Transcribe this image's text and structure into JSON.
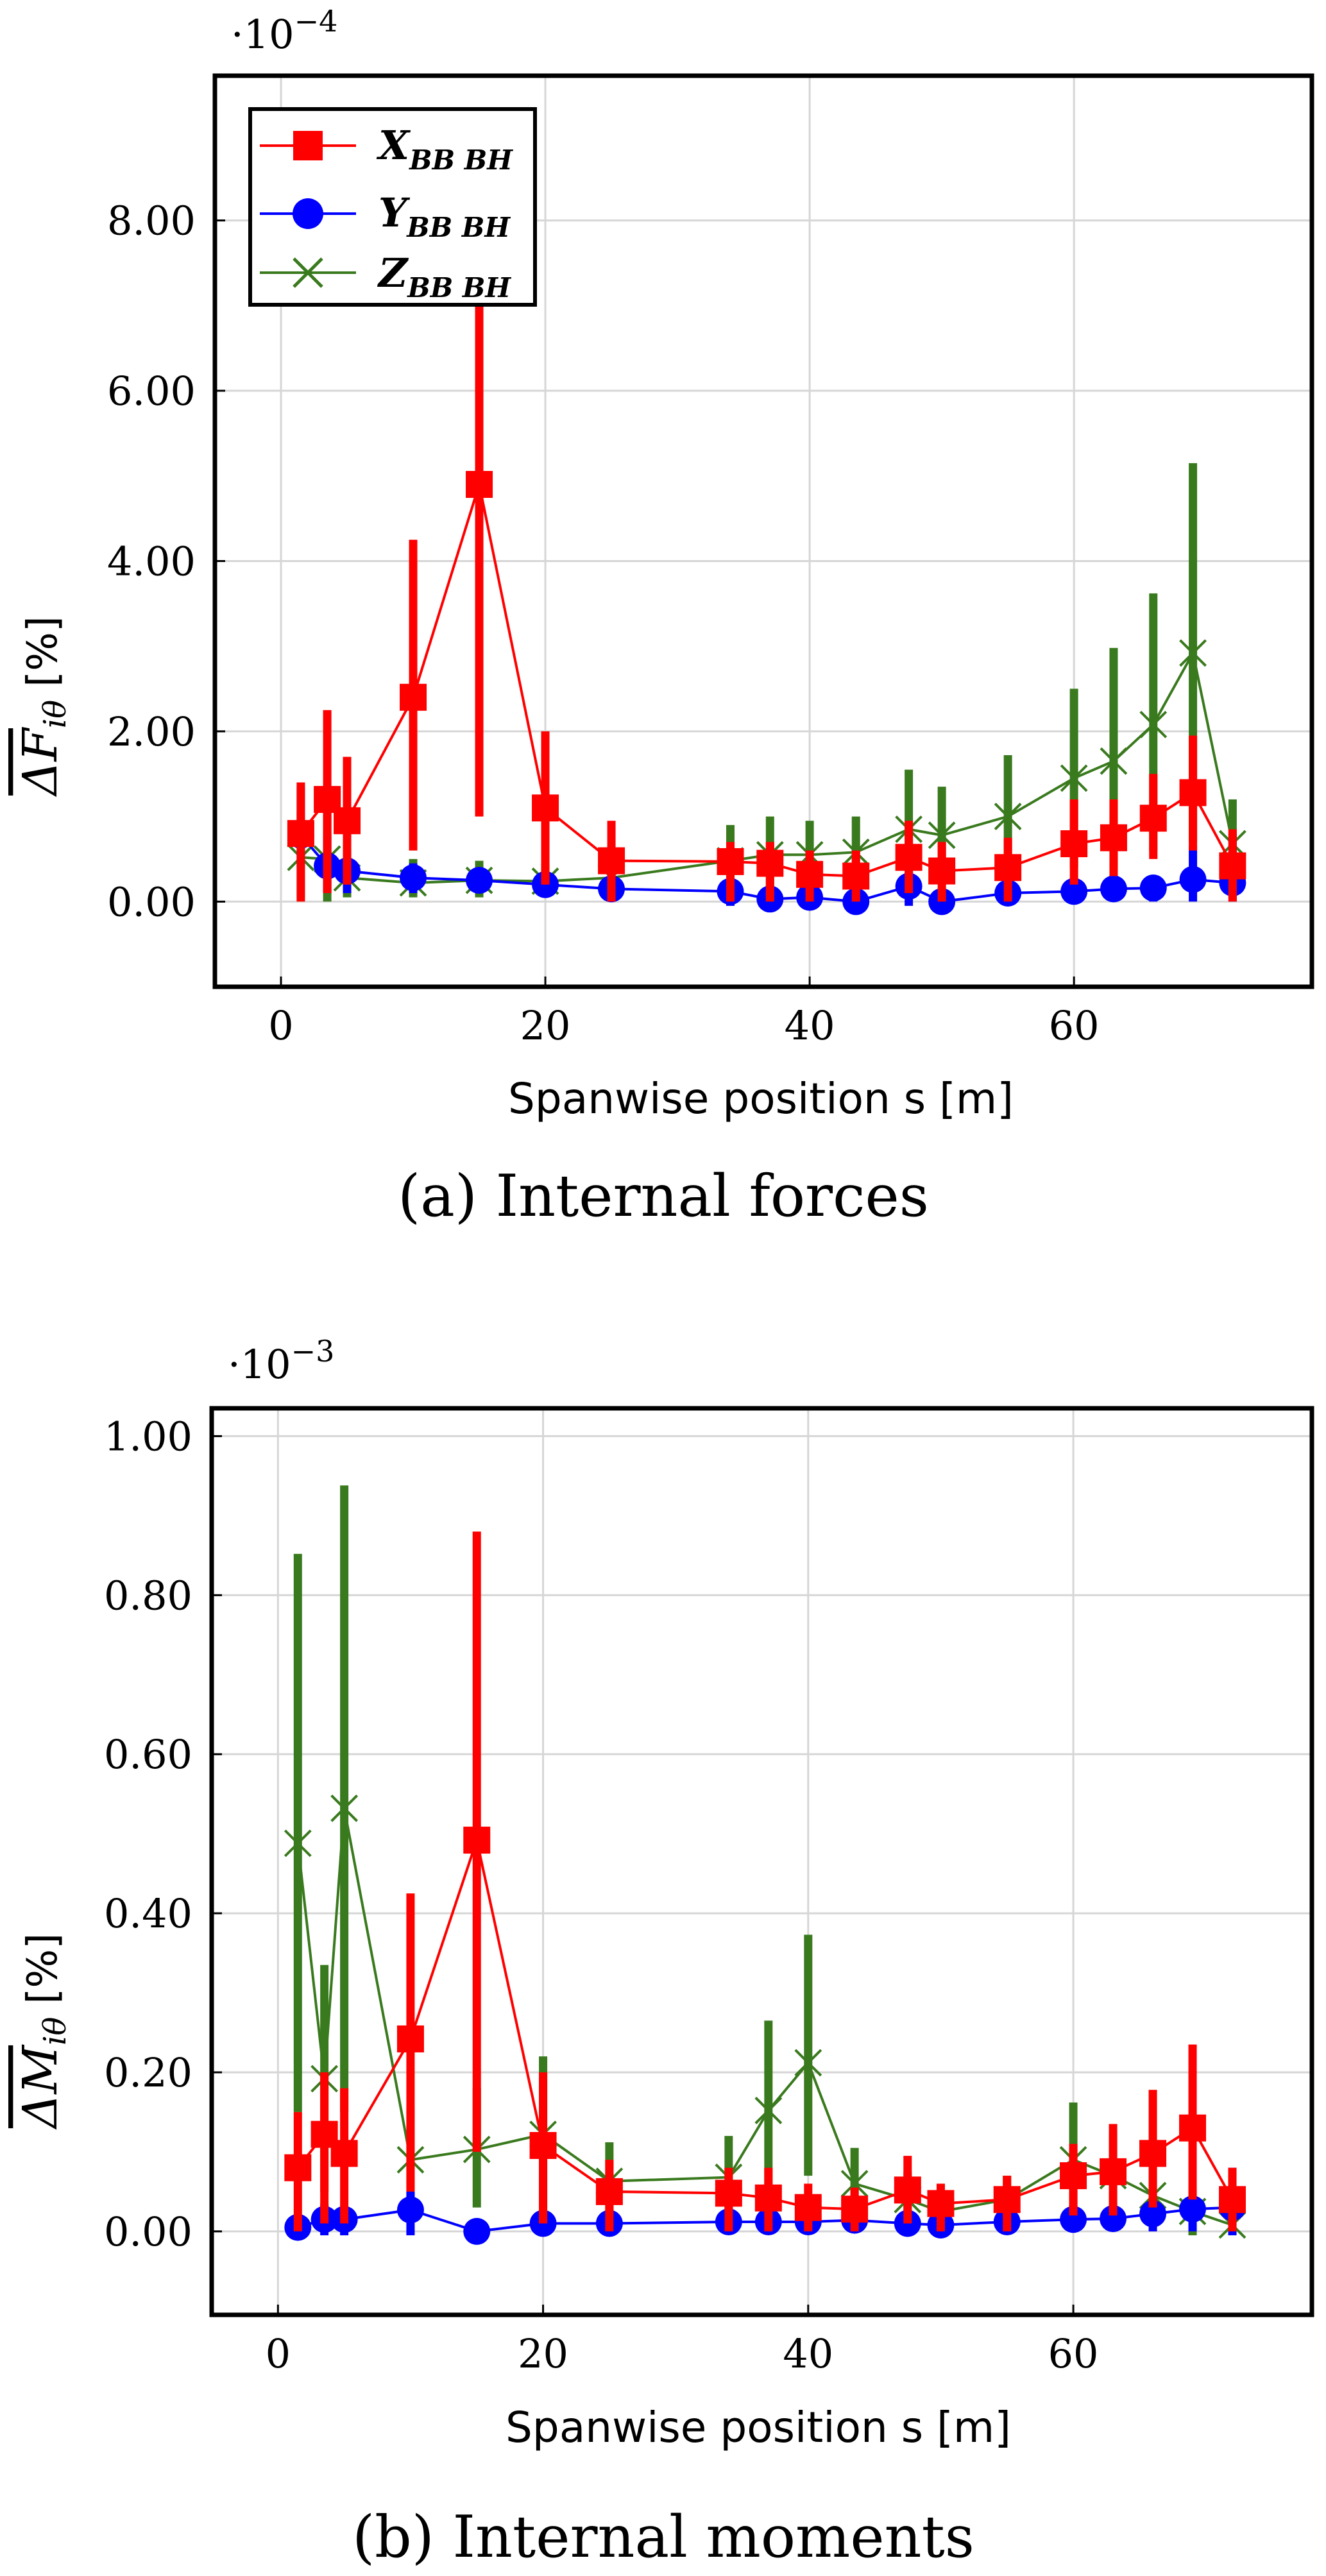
{
  "chart_data": [
    {
      "type": "line",
      "caption": "(a) Internal forces",
      "xlabel": "Spanwise position s [m]",
      "ylabel": "ΔF̄iθ [%]",
      "ylabel_main": "ΔF",
      "ylabel_sub": "iθ",
      "ylabel_unit": "[%]",
      "scale_label": "·10",
      "scale_exp": "−4",
      "xlim": [
        -5,
        78
      ],
      "ylim": [
        -1,
        9.7
      ],
      "xticks": [
        0,
        20,
        40,
        60
      ],
      "xtick_labels": [
        "0",
        "20",
        "40",
        "60"
      ],
      "yticks": [
        0,
        2,
        4,
        6,
        8
      ],
      "ytick_labels": [
        "0.00",
        "2.00",
        "4.00",
        "6.00",
        "8.00"
      ],
      "grid": true,
      "legend": "top-left",
      "x": [
        1.5,
        3.5,
        5,
        10,
        15,
        20,
        25,
        34,
        37,
        40,
        43.5,
        47.5,
        50,
        55,
        60,
        63,
        66,
        69,
        72
      ],
      "series": [
        {
          "name": "X",
          "sub": "BB BH",
          "color": "#ff0000",
          "marker": "square",
          "values": [
            0.8,
            1.2,
            0.95,
            2.4,
            4.9,
            1.1,
            0.48,
            0.47,
            0.45,
            0.32,
            0.3,
            0.52,
            0.36,
            0.4,
            0.68,
            0.75,
            0.98,
            1.28,
            0.42
          ],
          "err_low": [
            0.0,
            0.1,
            0.2,
            0.6,
            1.0,
            0.2,
            0.0,
            0.0,
            0.0,
            0.0,
            0.0,
            0.1,
            0.0,
            0.0,
            0.2,
            0.3,
            0.5,
            0.6,
            0.0
          ],
          "err_high": [
            1.4,
            2.25,
            1.7,
            4.25,
            7.2,
            2.0,
            0.95,
            0.7,
            0.7,
            0.6,
            0.6,
            0.95,
            0.7,
            0.75,
            1.2,
            1.2,
            1.5,
            1.95,
            0.85
          ]
        },
        {
          "name": "Y",
          "sub": "BB BH",
          "color": "#0000ff",
          "marker": "circle",
          "values": [
            0.78,
            0.42,
            0.36,
            0.28,
            0.25,
            0.2,
            0.15,
            0.12,
            0.03,
            0.05,
            0.0,
            0.18,
            0.0,
            0.1,
            0.12,
            0.15,
            0.16,
            0.26,
            0.22
          ],
          "err_low": [
            0.4,
            0.1,
            0.1,
            0.1,
            0.1,
            0.05,
            0.0,
            -0.05,
            -0.1,
            -0.05,
            -0.1,
            -0.05,
            -0.1,
            0.0,
            0.0,
            0.0,
            0.0,
            0.0,
            0.0
          ],
          "err_high": [
            1.35,
            0.8,
            0.6,
            0.45,
            0.4,
            0.35,
            0.25,
            0.25,
            0.15,
            0.15,
            0.1,
            0.35,
            0.1,
            0.2,
            0.25,
            0.25,
            0.3,
            0.65,
            0.8
          ]
        },
        {
          "name": "Z",
          "sub": "BB BH",
          "color": "#3a7a1e",
          "marker": "x",
          "values": [
            0.52,
            0.5,
            0.28,
            0.22,
            0.25,
            0.24,
            0.28,
            0.48,
            0.55,
            0.55,
            0.58,
            0.85,
            0.78,
            1.0,
            1.45,
            1.65,
            2.08,
            2.92,
            0.68
          ],
          "err_low": [
            0.05,
            0.0,
            0.05,
            0.05,
            0.05,
            0.05,
            0.05,
            0.1,
            0.1,
            0.1,
            0.2,
            0.2,
            0.2,
            0.3,
            0.4,
            0.4,
            0.6,
            0.7,
            0.2
          ],
          "err_high": [
            1.05,
            1.2,
            0.8,
            0.5,
            0.48,
            0.45,
            0.5,
            0.9,
            1.0,
            0.95,
            1.0,
            1.55,
            1.35,
            1.72,
            2.5,
            2.98,
            3.62,
            5.15,
            1.2
          ]
        }
      ]
    },
    {
      "type": "line",
      "caption": "(b) Internal moments",
      "xlabel": "Spanwise position s [m]",
      "ylabel": "ΔM̄iθ [%]",
      "ylabel_main": "ΔM",
      "ylabel_sub": "iθ",
      "ylabel_unit": "[%]",
      "scale_label": "·10",
      "scale_exp": "−3",
      "xlim": [
        -5,
        78
      ],
      "ylim": [
        -0.105,
        1.035
      ],
      "xticks": [
        0,
        20,
        40,
        60
      ],
      "xtick_labels": [
        "0",
        "20",
        "40",
        "60"
      ],
      "yticks": [
        0,
        0.2,
        0.4,
        0.6,
        0.8,
        1.0
      ],
      "ytick_labels": [
        "0.00",
        "0.20",
        "0.40",
        "0.60",
        "0.80",
        "1.00"
      ],
      "grid": true,
      "legend": "none",
      "x": [
        1.5,
        3.5,
        5,
        10,
        15,
        20,
        25,
        34,
        37,
        40,
        43.5,
        47.5,
        50,
        55,
        60,
        63,
        66,
        69,
        72
      ],
      "series": [
        {
          "name": "X",
          "sub": "BB BH",
          "color": "#ff0000",
          "marker": "square",
          "values": [
            0.08,
            0.122,
            0.098,
            0.242,
            0.492,
            0.108,
            0.05,
            0.048,
            0.042,
            0.03,
            0.028,
            0.052,
            0.035,
            0.04,
            0.07,
            0.075,
            0.098,
            0.13,
            0.04
          ],
          "err_low": [
            0.0,
            0.01,
            0.01,
            0.05,
            0.1,
            0.01,
            0.0,
            0.0,
            0.0,
            0.0,
            0.0,
            0.01,
            0.0,
            0.0,
            0.02,
            0.02,
            0.03,
            0.04,
            0.0
          ],
          "err_high": [
            0.15,
            0.2,
            0.18,
            0.425,
            0.88,
            0.2,
            0.09,
            0.08,
            0.08,
            0.06,
            0.055,
            0.095,
            0.06,
            0.07,
            0.11,
            0.135,
            0.178,
            0.235,
            0.08
          ]
        },
        {
          "name": "Y",
          "sub": "BB BH",
          "color": "#0000ff",
          "marker": "circle",
          "values": [
            0.005,
            0.015,
            0.015,
            0.027,
            0.0,
            0.01,
            0.01,
            0.012,
            0.012,
            0.012,
            0.014,
            0.01,
            0.008,
            0.012,
            0.015,
            0.016,
            0.022,
            0.028,
            0.03
          ],
          "err_low": [
            -0.005,
            -0.005,
            -0.005,
            -0.005,
            -0.005,
            0.0,
            0.0,
            0.0,
            0.0,
            0.0,
            0.0,
            0.0,
            0.0,
            0.0,
            0.0,
            0.0,
            0.0,
            0.0,
            -0.005
          ],
          "err_high": [
            0.015,
            0.035,
            0.03,
            0.05,
            0.01,
            0.025,
            0.025,
            0.025,
            0.025,
            0.025,
            0.03,
            0.025,
            0.02,
            0.025,
            0.03,
            0.035,
            0.04,
            0.045,
            0.08
          ]
        },
        {
          "name": "Z",
          "sub": "BB BH",
          "color": "#3a7a1e",
          "marker": "x",
          "values": [
            0.488,
            0.192,
            0.532,
            0.09,
            0.103,
            0.122,
            0.063,
            0.068,
            0.152,
            0.212,
            0.06,
            0.04,
            0.025,
            0.04,
            0.09,
            0.07,
            0.045,
            0.025,
            0.008
          ],
          "err_low": [
            0.15,
            0.05,
            0.15,
            0.03,
            0.03,
            0.03,
            0.015,
            0.02,
            0.05,
            0.07,
            0.02,
            0.01,
            0.005,
            0.01,
            0.02,
            0.02,
            0.01,
            -0.005,
            -0.005
          ],
          "err_high": [
            0.852,
            0.335,
            0.938,
            0.155,
            0.18,
            0.22,
            0.112,
            0.12,
            0.265,
            0.373,
            0.105,
            0.075,
            0.05,
            0.07,
            0.162,
            0.125,
            0.08,
            0.055,
            0.025
          ]
        }
      ]
    }
  ]
}
